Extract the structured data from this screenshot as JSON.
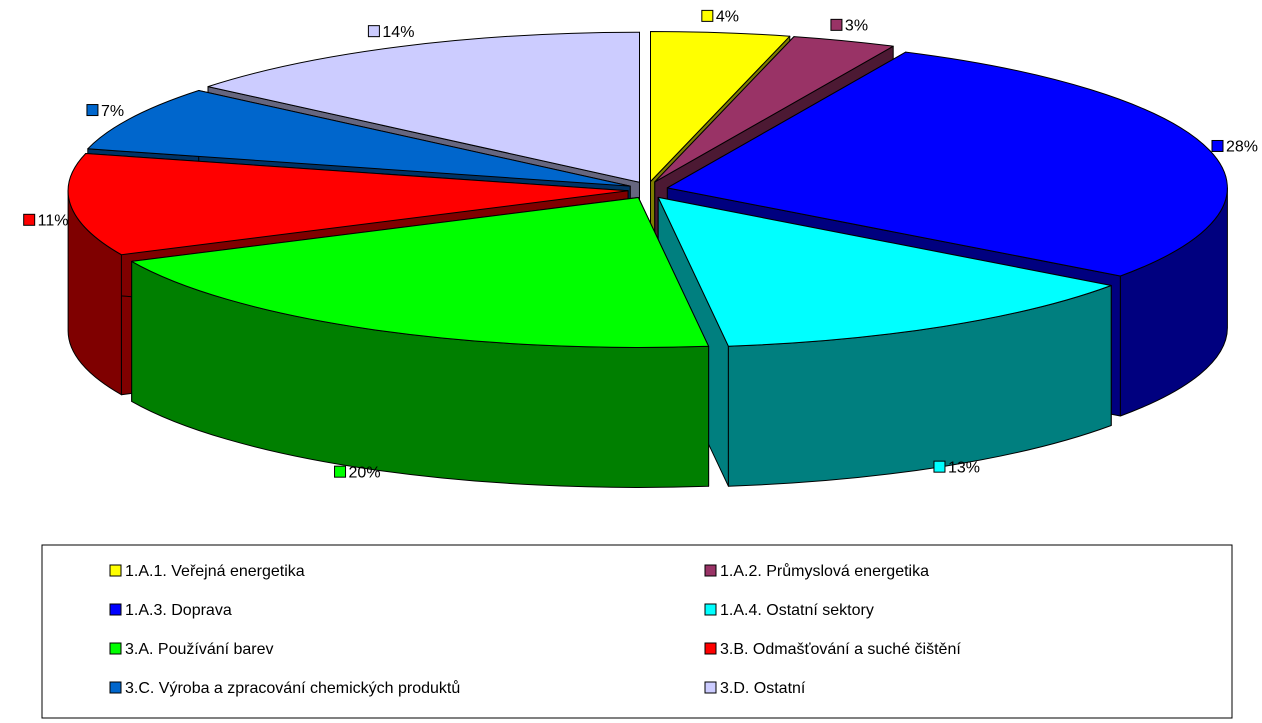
{
  "chart_data": {
    "type": "pie",
    "categories": [
      "1.A.1. Veřejná energetika",
      "1.A.2. Průmyslová energetika",
      "1.A.3. Doprava",
      "1.A.4. Ostatní sektory",
      "3.A. Používání barev",
      "3.B. Odmašťování a suché čištění",
      "3.C. Výroba a zpracování chemických produktů",
      "3.D. Ostatní"
    ],
    "values": [
      4,
      3,
      28,
      13,
      20,
      11,
      7,
      14
    ],
    "value_labels": [
      "4%",
      "3%",
      "28%",
      "13%",
      "20%",
      "11%",
      "7%",
      "14%"
    ],
    "colors": [
      "#ffff00",
      "#993366",
      "#0000ff",
      "#00ffff",
      "#00ff00",
      "#ff0000",
      "#0066cc",
      "#ccccff"
    ],
    "legend": "bottom"
  }
}
